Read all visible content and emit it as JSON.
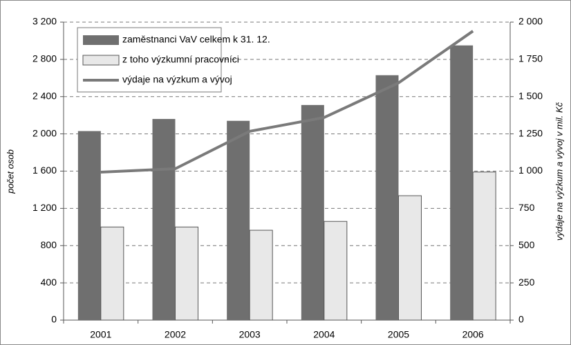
{
  "chart_data": {
    "type": "bar",
    "categories": [
      "2001",
      "2002",
      "2003",
      "2004",
      "2005",
      "2006"
    ],
    "series": [
      {
        "name": "zaměstnanci VaV celkem k 31. 12.",
        "color": "#6f6f6f",
        "values": [
          2030,
          2160,
          2140,
          2310,
          2630,
          2950
        ]
      },
      {
        "name": "z toho výzkumní pracovníci",
        "color": "#e8e8e8",
        "values": [
          1000,
          1000,
          965,
          1060,
          1336,
          1590
        ]
      },
      {
        "name": "výdaje na výzkum a vývoj",
        "color": "#7a7a7a",
        "type": "line",
        "axis": "y2",
        "values": [
          993,
          1016,
          1267,
          1360,
          1592,
          1940
        ]
      }
    ],
    "ylabel": "počet osob",
    "y2label": "výdaje na výzkum a vývoj v mil. Kč",
    "ylim": [
      0,
      3200
    ],
    "yticks": [
      0,
      400,
      800,
      {
        "value": 1200,
        "label": "1 200"
      },
      {
        "value": 1600,
        "label": "1 600"
      },
      {
        "value": 2000,
        "label": "2 000"
      },
      {
        "value": 2400,
        "label": "2 400"
      },
      {
        "value": 2800,
        "label": "2 800"
      },
      {
        "value": 3200,
        "label": "3 200"
      }
    ],
    "y2lim": [
      0,
      2000
    ],
    "y2ticks": [
      0,
      250,
      500,
      750,
      {
        "value": 1000,
        "label": "1 000"
      },
      {
        "value": 1250,
        "label": "1 250"
      },
      {
        "value": 1500,
        "label": "1 500"
      },
      {
        "value": 1750,
        "label": "1 750"
      },
      {
        "value": 2000,
        "label": "2 000"
      }
    ],
    "grid": true,
    "legend_position": "upper left"
  }
}
